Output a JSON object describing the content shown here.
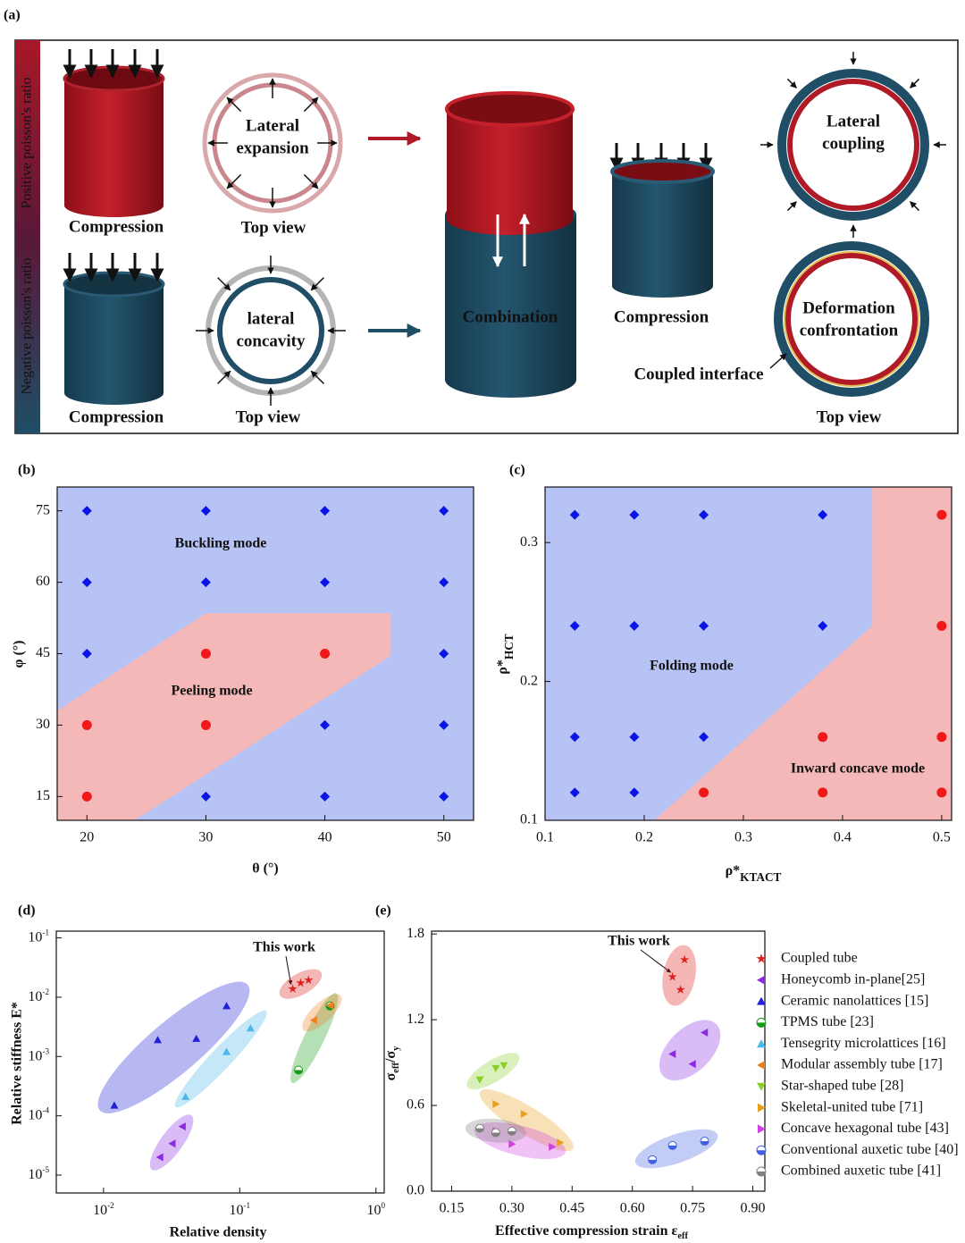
{
  "panel_a": {
    "label": "(a)",
    "side_labels": [
      "Positive poisson's ratio",
      "Negative poisson's ratio"
    ],
    "items": [
      {
        "lines": [
          "Compression"
        ]
      },
      {
        "lines": [
          "Top view"
        ]
      },
      {
        "lines": [
          "Lateral",
          "expansion"
        ]
      },
      {
        "lines": [
          "Compression"
        ]
      },
      {
        "lines": [
          "Top view"
        ]
      },
      {
        "lines": [
          "lateral",
          "concavity"
        ]
      },
      {
        "lines": [
          "Combination"
        ]
      },
      {
        "lines": [
          "Compression"
        ]
      },
      {
        "lines": [
          "Lateral",
          "coupling"
        ]
      },
      {
        "lines": [
          "Deformation",
          "confrontation"
        ]
      },
      {
        "lines": [
          "Coupled interface"
        ]
      },
      {
        "lines": [
          "Top view"
        ]
      }
    ]
  },
  "chart_data": [
    {
      "type": "scatter",
      "label": "(b)",
      "x_label": "θ (°)",
      "y_label": "φ (°)",
      "xlim": [
        17.5,
        52.5
      ],
      "ylim": [
        10,
        80
      ],
      "xticks": [
        20,
        30,
        40,
        50
      ],
      "yticks": [
        15,
        30,
        45,
        60,
        75
      ],
      "background": "#b7c2f5",
      "regions": [
        {
          "color": "#f5b8b8",
          "x": [
            17.5,
            30,
            45.5,
            45.5,
            24,
            17.5
          ],
          "y": [
            33,
            53.5,
            53.5,
            44.5,
            10,
            10
          ]
        }
      ],
      "annotations": [
        {
          "text": "Buckling mode",
          "color": "#1a1acc"
        },
        {
          "text": "Peeling mode",
          "color": "#e8304a"
        }
      ],
      "series": [
        {
          "color": "#0a14e6",
          "marker": "diamond",
          "x": [
            20,
            20,
            20,
            30,
            30,
            30,
            40,
            40,
            40,
            40,
            50,
            50,
            50,
            50,
            50
          ],
          "values": [
            75,
            60,
            45,
            75,
            60,
            15,
            75,
            60,
            30,
            15,
            75,
            60,
            45,
            30,
            15
          ]
        },
        {
          "color": "#f01818",
          "marker": "circle",
          "x": [
            20,
            20,
            30,
            30,
            40
          ],
          "values": [
            30,
            15,
            45,
            30,
            45
          ]
        }
      ]
    },
    {
      "type": "scatter",
      "label": "(c)",
      "x_label": [
        {
          "text": "ρ*"
        },
        {
          "text": "KTACT",
          "sub": true
        }
      ],
      "y_label": [
        {
          "text": "ρ*"
        },
        {
          "text": "HCT",
          "sub": true
        }
      ],
      "xlim": [
        0.1,
        0.51
      ],
      "ylim": [
        0.1,
        0.34
      ],
      "xticks": [
        0.1,
        0.2,
        0.3,
        0.4,
        0.5
      ],
      "yticks": [
        0.1,
        0.2,
        0.3
      ],
      "background": "#b7c2f5",
      "regions": [
        {
          "color": "#f5b8b8",
          "x": [
            0.21,
            0.43,
            0.43,
            0.51,
            0.51
          ],
          "y": [
            0.1,
            0.24,
            0.34,
            0.34,
            0.1
          ]
        }
      ],
      "annotations": [
        {
          "text": "Folding mode",
          "color": "#1a1acc"
        },
        {
          "text": "Inward concave mode",
          "color": "#e8304a"
        }
      ],
      "series": [
        {
          "color": "#0a14e6",
          "marker": "diamond",
          "x": [
            0.13,
            0.19,
            0.26,
            0.38,
            0.13,
            0.19,
            0.26,
            0.38,
            0.13,
            0.19,
            0.26,
            0.13,
            0.19
          ],
          "values": [
            0.32,
            0.32,
            0.32,
            0.32,
            0.24,
            0.24,
            0.24,
            0.24,
            0.16,
            0.16,
            0.16,
            0.12,
            0.12
          ]
        },
        {
          "color": "#f01818",
          "marker": "circle",
          "x": [
            0.5,
            0.5,
            0.38,
            0.5,
            0.26,
            0.38,
            0.5
          ],
          "values": [
            0.32,
            0.24,
            0.16,
            0.16,
            0.12,
            0.12,
            0.12
          ]
        }
      ]
    },
    {
      "type": "scatter",
      "label": "(d)",
      "log": true,
      "x_label": "Relative density",
      "y_label": "Relative stiffness E*",
      "xlim": [
        0.0045,
        1.15
      ],
      "ylim": [
        5e-06,
        0.13
      ],
      "xticks": [
        {
          "value": 0.01,
          "label": "10",
          "exponent": "-2"
        },
        {
          "value": 0.1,
          "label": "10",
          "exponent": "-1"
        },
        {
          "value": 1,
          "label": "10",
          "exponent": "0"
        }
      ],
      "yticks": [
        {
          "value": 1e-05,
          "label": "10",
          "exponent": "-5"
        },
        {
          "value": 0.0001,
          "label": "10",
          "exponent": "-4"
        },
        {
          "value": 0.001,
          "label": "10",
          "exponent": "-3"
        },
        {
          "value": 0.01,
          "label": "10",
          "exponent": "-2"
        },
        {
          "value": 0.1,
          "label": "10",
          "exponent": "-1"
        }
      ],
      "annotations": [
        {
          "text": "This work",
          "color": "#111"
        }
      ],
      "series": [
        {
          "color": "#e0201c",
          "marker": "star",
          "x": [
            0.245,
            0.28,
            0.32
          ],
          "values": [
            0.0138,
            0.0174,
            0.0194
          ]
        },
        {
          "color": "#2020d8",
          "marker": "up",
          "x": [
            0.012,
            0.025,
            0.048,
            0.08
          ],
          "values": [
            0.00015,
            0.0019,
            0.002,
            0.0071
          ]
        },
        {
          "color": "#4ab8e8",
          "marker": "up",
          "x": [
            0.04,
            0.08,
            0.12
          ],
          "values": [
            0.00021,
            0.0012,
            0.003
          ]
        },
        {
          "color": "#8a2be2",
          "marker": "left",
          "x": [
            0.026,
            0.032,
            0.038
          ],
          "values": [
            2e-05,
            3.4e-05,
            6.6e-05
          ]
        },
        {
          "color": "#1a9a1a",
          "marker": "half",
          "x": [
            0.27,
            0.46
          ],
          "values": [
            0.00059,
            0.0071
          ]
        },
        {
          "color": "#f08020",
          "marker": "left",
          "x": [
            0.35,
            0.46
          ],
          "values": [
            0.0041,
            0.0073
          ]
        }
      ]
    },
    {
      "type": "scatter",
      "label": "(e)",
      "x_label": [
        {
          "text": "Effective compression strain ε"
        },
        {
          "text": "eff",
          "sub": true
        }
      ],
      "y_label": [
        {
          "text": "σ"
        },
        {
          "text": "eff",
          "sub": true
        },
        {
          "text": "/σ"
        },
        {
          "text": "y",
          "sub": true
        }
      ],
      "xlim": [
        0.1,
        0.93
      ],
      "ylim": [
        0,
        1.82
      ],
      "xticks": [
        0.15,
        {
          "value": 0.3,
          "label": "0.30"
        },
        0.45,
        {
          "value": 0.6,
          "label": "0.60"
        },
        0.75,
        {
          "value": 0.9,
          "label": "0.90"
        }
      ],
      "yticks": [
        {
          "value": 0,
          "label": "0.0"
        },
        0.6,
        1.2,
        1.8
      ],
      "legend": true,
      "annotations": [
        {
          "text": "This work",
          "color": "#111"
        }
      ],
      "series": [
        {
          "name": "Coupled tube",
          "color": "#e0201c",
          "marker": "star",
          "x": [
            0.7,
            0.73,
            0.72
          ],
          "values": [
            1.5,
            1.62,
            1.41
          ]
        },
        {
          "name": "Honeycomb in-plane[25]",
          "color": "#8a2be2",
          "marker": "left",
          "x": [
            0.7,
            0.75,
            0.78
          ],
          "values": [
            0.96,
            0.89,
            1.11
          ]
        },
        {
          "name": "Ceramic nanolattices [15]",
          "color": "#2020d8",
          "marker": "up",
          "x": [],
          "values": []
        },
        {
          "name": "TPMS tube [23]",
          "color": "#1a9a1a",
          "marker": "half",
          "x": [],
          "values": []
        },
        {
          "name": "Tensegrity microlattices [16]",
          "color": "#4ab8e8",
          "marker": "up",
          "x": [],
          "values": []
        },
        {
          "name": "Modular assembly tube [17]",
          "color": "#f08020",
          "marker": "left",
          "x": [],
          "values": []
        },
        {
          "name": "Star-shaped tube [28]",
          "color": "#8ad02a",
          "marker": "down",
          "x": [
            0.22,
            0.26,
            0.28
          ],
          "values": [
            0.78,
            0.86,
            0.88
          ]
        },
        {
          "name": "Skeletal-united tube [71]",
          "color": "#e8a020",
          "marker": "right",
          "x": [
            0.26,
            0.33,
            0.42
          ],
          "values": [
            0.61,
            0.54,
            0.34
          ]
        },
        {
          "name": "Concave hexagonal tube [43]",
          "color": "#d040e0",
          "marker": "right",
          "x": [
            0.26,
            0.3,
            0.4
          ],
          "values": [
            0.42,
            0.33,
            0.31
          ]
        },
        {
          "name": "Conventional auxetic tube [40]",
          "color": "#4060e0",
          "marker": "half",
          "x": [
            0.65,
            0.7,
            0.78
          ],
          "values": [
            0.22,
            0.32,
            0.35
          ]
        },
        {
          "name": "Combined auxetic tube [41]",
          "color": "#808080",
          "marker": "half",
          "x": [
            0.22,
            0.26,
            0.3
          ],
          "values": [
            0.44,
            0.41,
            0.42
          ]
        }
      ]
    }
  ]
}
